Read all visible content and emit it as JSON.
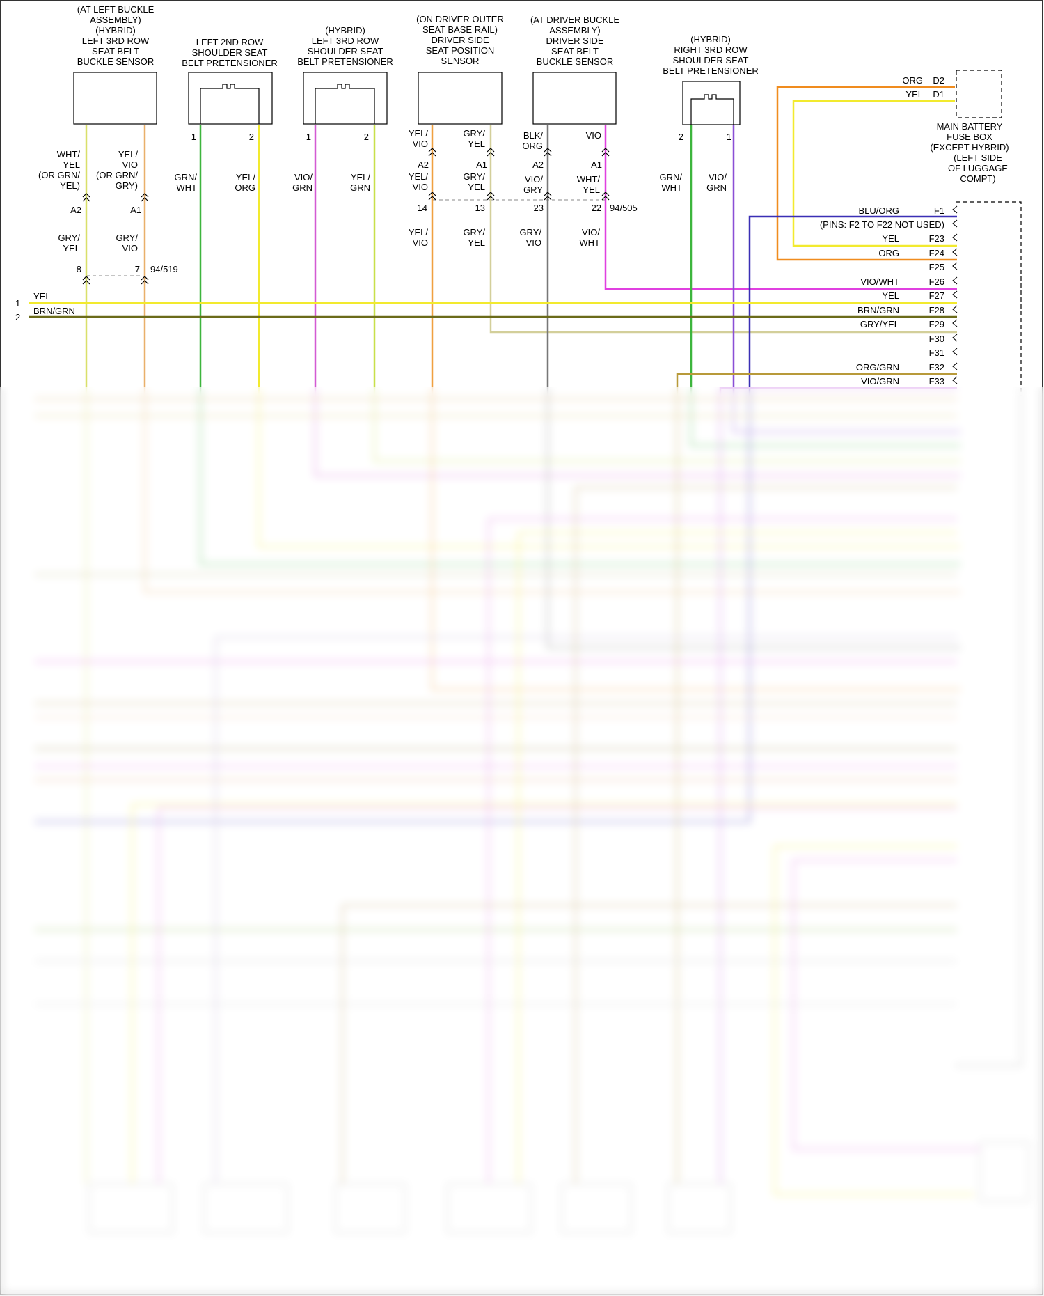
{
  "colors": {
    "yel": "#f2ea2e",
    "org": "#f08c1e",
    "vio": "#e070e0",
    "grn": "#3db53d",
    "gry": "#b8b8b8",
    "blu": "#3a2fb5",
    "brn": "#6b5a1a",
    "blk": "#222222",
    "wht": "#f3f3f3",
    "gry_yel": "#d8d39a",
    "yel_vio": "#e6c070"
  },
  "components": {
    "left_3rd_buckle": [
      "(AT LEFT BUCKLE",
      "ASSEMBLY)",
      "(HYBRID)",
      "LEFT 3RD ROW",
      "SEAT BELT",
      "BUCKLE SENSOR"
    ],
    "left_2nd_pret": [
      "LEFT 2ND ROW",
      "SHOULDER SEAT",
      "BELT PRETENSIONER"
    ],
    "left_3rd_pret": [
      "(HYBRID)",
      "LEFT 3RD ROW",
      "SHOULDER SEAT",
      "BELT PRETENSIONER"
    ],
    "seat_position": [
      "(ON DRIVER OUTER",
      "SEAT BASE RAIL)",
      "DRIVER SIDE",
      "SEAT POSITION",
      "SENSOR"
    ],
    "driver_buckle": [
      "(AT DRIVER BUCKLE",
      "ASSEMBLY)",
      "DRIVER SIDE",
      "SEAT BELT",
      "BUCKLE SENSOR"
    ],
    "right_3rd_pret": [
      "(HYBRID)",
      "RIGHT 3RD ROW",
      "SHOULDER SEAT",
      "BELT PRETENSIONER"
    ],
    "main_battery_fuse_box": [
      "MAIN BATTERY",
      "FUSE BOX",
      "(EXCEPT HYBRID)",
      "(LEFT SIDE",
      "OF LUGGAGE",
      "COMPT)"
    ]
  },
  "wires": {
    "c1_a": [
      "WHT/",
      "YEL",
      "(OR GRN/",
      "YEL)"
    ],
    "c1_b": [
      "YEL/",
      "VIO",
      "(OR GRN/",
      "GRY)"
    ],
    "c1_pins": [
      "A2",
      "A1"
    ],
    "c1_mid_a": [
      "GRY/",
      "YEL"
    ],
    "c1_mid_b": [
      "GRY/",
      "VIO"
    ],
    "c1_conn": [
      "8",
      "7",
      "94/519"
    ],
    "c2_pins": [
      "1",
      "2"
    ],
    "c2_a": [
      "GRN/",
      "WHT"
    ],
    "c2_b": [
      "YEL/",
      "ORG"
    ],
    "c3_pins": [
      "1",
      "2"
    ],
    "c3_a": [
      "VIO/",
      "GRN"
    ],
    "c3_b": [
      "YEL/",
      "GRN"
    ],
    "c4_top_a": [
      "YEL/",
      "VIO"
    ],
    "c4_top_b": [
      "GRY/",
      "YEL"
    ],
    "c4_pins": [
      "A2",
      "A1"
    ],
    "c4_mid_a": [
      "YEL/",
      "VIO"
    ],
    "c4_mid_b": [
      "GRY/",
      "YEL"
    ],
    "c4_conn": [
      "14",
      "13"
    ],
    "c4_bot_a": [
      "YEL/",
      "VIO"
    ],
    "c4_bot_b": [
      "GRY/",
      "YEL"
    ],
    "c5_top_a": [
      "BLK/",
      "ORG"
    ],
    "c5_top_b": [
      "VIO"
    ],
    "c5_pins": [
      "A2",
      "A1"
    ],
    "c5_mid_a": [
      "VIO/",
      "GRY"
    ],
    "c5_mid_b": [
      "WHT/",
      "YEL"
    ],
    "c5_conn": [
      "23",
      "22",
      "94/505"
    ],
    "c5_bot_a": [
      "GRY/",
      "VIO"
    ],
    "c5_bot_b": [
      "VIO/",
      "WHT"
    ],
    "c6_pins": [
      "2",
      "1"
    ],
    "c6_a": [
      "GRN/",
      "WHT"
    ],
    "c6_b": [
      "VIO/",
      "GRN"
    ],
    "fuse_pins": [
      {
        "color": "ORG",
        "pin": "D2"
      },
      {
        "color": "YEL",
        "pin": "D1"
      }
    ],
    "left_lines": [
      {
        "num": "1",
        "color": "YEL"
      },
      {
        "num": "2",
        "color": "BRN/GRN"
      }
    ],
    "f_pins": [
      {
        "label": "BLU/ORG",
        "pin": "F1"
      },
      {
        "label": "(PINS: F2 TO F22 NOT USED)",
        "pin": ""
      },
      {
        "label": "YEL",
        "pin": "F23"
      },
      {
        "label": "ORG",
        "pin": "F24"
      },
      {
        "label": "",
        "pin": "F25"
      },
      {
        "label": "VIO/WHT",
        "pin": "F26"
      },
      {
        "label": "YEL",
        "pin": "F27"
      },
      {
        "label": "BRN/GRN",
        "pin": "F28"
      },
      {
        "label": "GRY/YEL",
        "pin": "F29"
      },
      {
        "label": "",
        "pin": "F30"
      },
      {
        "label": "",
        "pin": "F31"
      },
      {
        "label": "ORG/GRN",
        "pin": "F32"
      },
      {
        "label": "VIO/GRN",
        "pin": "F33"
      }
    ]
  }
}
